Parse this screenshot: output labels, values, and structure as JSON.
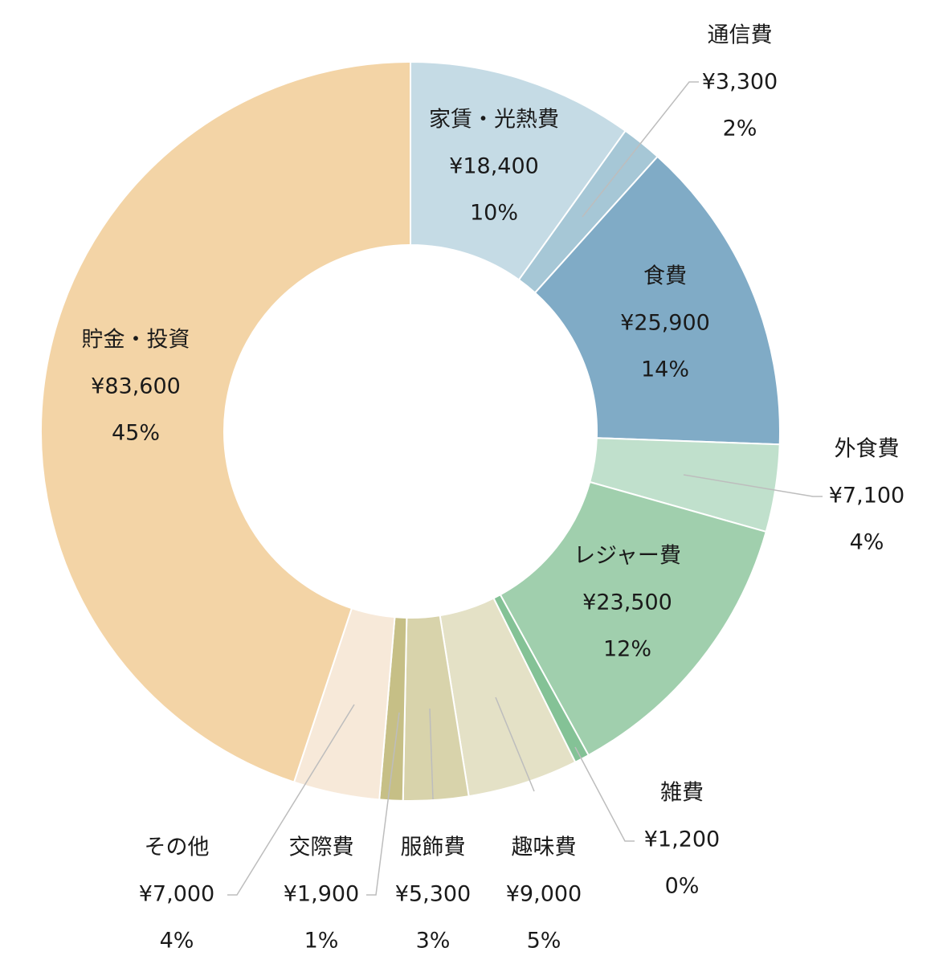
{
  "chart_data": {
    "type": "pie",
    "donut": true,
    "start_angle_deg": 0,
    "direction": "clockwise",
    "slices": [
      {
        "name": "家賃・光熱費",
        "value_label": "¥18,400",
        "percent_label": "10%",
        "value": 18400,
        "color": "#c5dbe5",
        "label_mode": "inside"
      },
      {
        "name": "通信費",
        "value_label": "¥3,300",
        "percent_label": "2%",
        "value": 3300,
        "color": "#a6c7d6",
        "label_mode": "outside"
      },
      {
        "name": "食費",
        "value_label": "¥25,900",
        "percent_label": "14%",
        "value": 25900,
        "color": "#80abc6",
        "label_mode": "inside"
      },
      {
        "name": "外食費",
        "value_label": "¥7,100",
        "percent_label": "4%",
        "value": 7100,
        "color": "#c0e0cc",
        "label_mode": "outside"
      },
      {
        "name": "レジャー費",
        "value_label": "¥23,500",
        "percent_label": "12%",
        "value": 23500,
        "color": "#a0cfad",
        "label_mode": "inside"
      },
      {
        "name": "雑費",
        "value_label": "¥1,200",
        "percent_label": "0%",
        "value": 1200,
        "color": "#84c296",
        "label_mode": "outside"
      },
      {
        "name": "趣味費",
        "value_label": "¥9,000",
        "percent_label": "5%",
        "value": 9000,
        "color": "#e4e1c6",
        "label_mode": "outside"
      },
      {
        "name": "服飾費",
        "value_label": "¥5,300",
        "percent_label": "3%",
        "value": 5300,
        "color": "#d8d3ab",
        "label_mode": "outside"
      },
      {
        "name": "交際費",
        "value_label": "¥1,900",
        "percent_label": "1%",
        "value": 1900,
        "color": "#c6bf86",
        "label_mode": "outside"
      },
      {
        "name": "その他",
        "value_label": "¥7,000",
        "percent_label": "4%",
        "value": 7000,
        "color": "#f7e9d9",
        "label_mode": "outside"
      },
      {
        "name": "貯金・投資",
        "value_label": "¥83,600",
        "percent_label": "45%",
        "value": 83600,
        "color": "#f3d4a6",
        "label_mode": "inside"
      }
    ]
  }
}
